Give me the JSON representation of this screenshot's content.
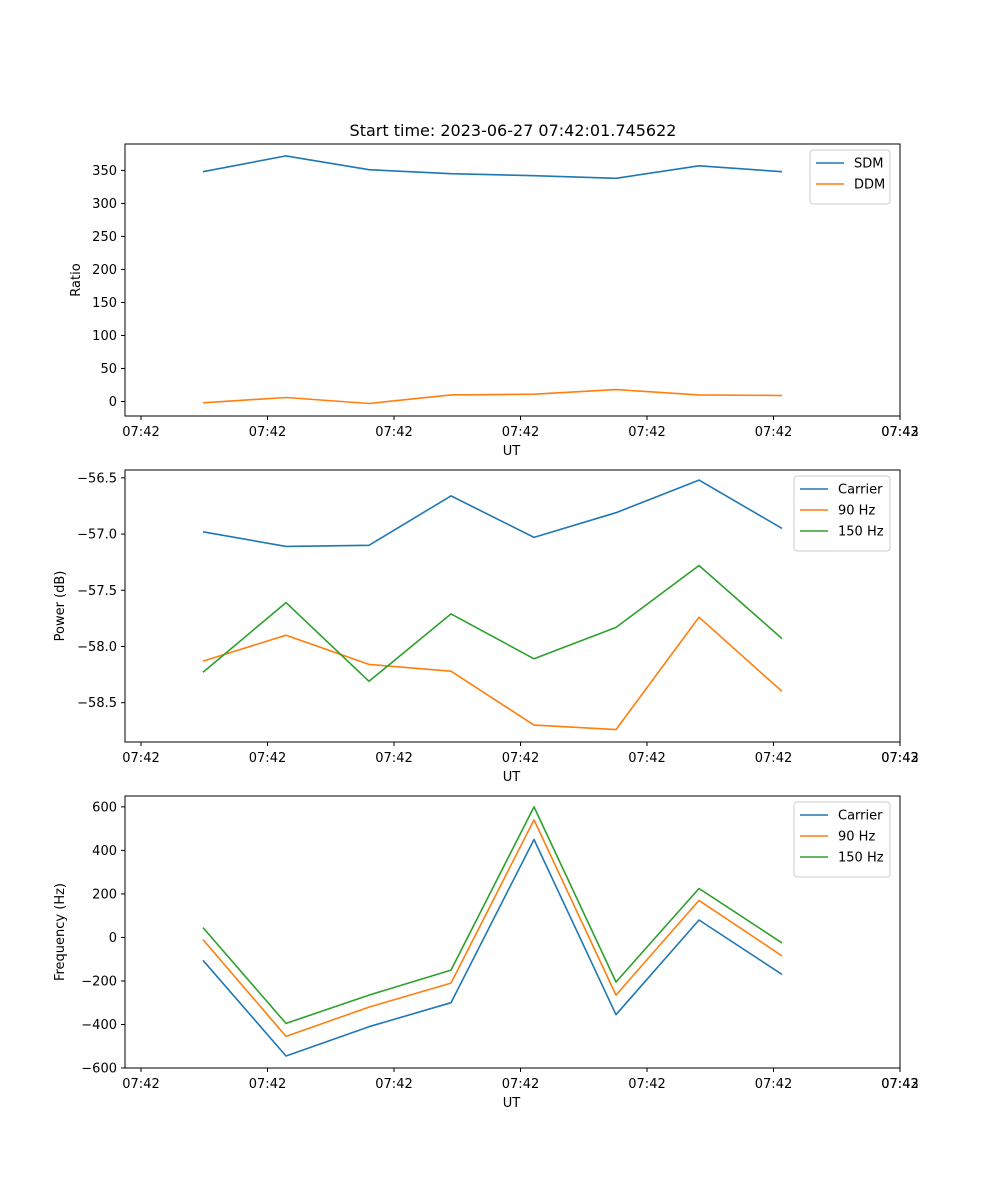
{
  "figure": {
    "title": "Start time: 2023-06-27 07:42:01.745622"
  },
  "colors": {
    "blue": "#1f77b4",
    "orange": "#ff7f0e",
    "green": "#2ca02c"
  },
  "chart_data": [
    {
      "type": "line",
      "title": "Start time: 2023-06-27 07:42:01.745622",
      "xlabel": "UT",
      "ylabel": "Ratio",
      "x_tick_labels": [
        "07:42",
        "07:42",
        "07:42",
        "07:42",
        "07:42",
        "07:42",
        "07:42",
        "07:43"
      ],
      "ylim": [
        -22,
        390
      ],
      "y_ticks": [
        0,
        50,
        100,
        150,
        200,
        250,
        300,
        350
      ],
      "y_tick_labels": [
        "0",
        "50",
        "100",
        "150",
        "200",
        "250",
        "300",
        "350"
      ],
      "legend": "top-right",
      "grid": false,
      "series": [
        {
          "name": "SDM",
          "color": "#1f77b4",
          "values": [
            348,
            372,
            351,
            345,
            342,
            338,
            357,
            348
          ]
        },
        {
          "name": "DDM",
          "color": "#ff7f0e",
          "values": [
            -2,
            6,
            -3,
            10,
            11,
            18,
            10,
            9
          ]
        }
      ]
    },
    {
      "type": "line",
      "title": "",
      "xlabel": "UT",
      "ylabel": "Power (dB)",
      "x_tick_labels": [
        "07:42",
        "07:42",
        "07:42",
        "07:42",
        "07:42",
        "07:42",
        "07:42",
        "07:43"
      ],
      "ylim": [
        -58.85,
        -56.43
      ],
      "y_ticks": [
        -58.5,
        -58.0,
        -57.5,
        -57.0,
        -56.5
      ],
      "y_tick_labels": [
        "−58.5",
        "−58.0",
        "−57.5",
        "−57.0",
        "−56.5"
      ],
      "legend": "top-right",
      "grid": false,
      "series": [
        {
          "name": "Carrier",
          "color": "#1f77b4",
          "values": [
            -56.98,
            -57.11,
            -57.1,
            -56.66,
            -57.03,
            -56.81,
            -56.52,
            -56.95
          ]
        },
        {
          "name": "90 Hz",
          "color": "#ff7f0e",
          "values": [
            -58.13,
            -57.9,
            -58.16,
            -58.22,
            -58.7,
            -58.74,
            -57.74,
            -58.4
          ]
        },
        {
          "name": "150 Hz",
          "color": "#2ca02c",
          "values": [
            -58.23,
            -57.61,
            -58.31,
            -57.71,
            -58.11,
            -57.83,
            -57.28,
            -57.93
          ]
        }
      ]
    },
    {
      "type": "line",
      "title": "",
      "xlabel": "UT",
      "ylabel": "Frequency (Hz)",
      "x_tick_labels": [
        "07:42",
        "07:42",
        "07:42",
        "07:42",
        "07:42",
        "07:42",
        "07:42",
        "07:43"
      ],
      "ylim": [
        -600,
        650
      ],
      "y_ticks": [
        -600,
        -400,
        -200,
        0,
        200,
        400,
        600
      ],
      "y_tick_labels": [
        "−600",
        "−400",
        "−200",
        "0",
        "200",
        "400",
        "600"
      ],
      "legend": "top-right",
      "grid": false,
      "series": [
        {
          "name": "Carrier",
          "color": "#1f77b4",
          "values": [
            -105,
            -545,
            -410,
            -300,
            450,
            -355,
            80,
            -170
          ]
        },
        {
          "name": "90 Hz",
          "color": "#ff7f0e",
          "values": [
            -10,
            -455,
            -320,
            -210,
            540,
            -265,
            170,
            -85
          ]
        },
        {
          "name": "150 Hz",
          "color": "#2ca02c",
          "values": [
            45,
            -395,
            -265,
            -150,
            600,
            -205,
            225,
            -25
          ]
        }
      ]
    }
  ]
}
